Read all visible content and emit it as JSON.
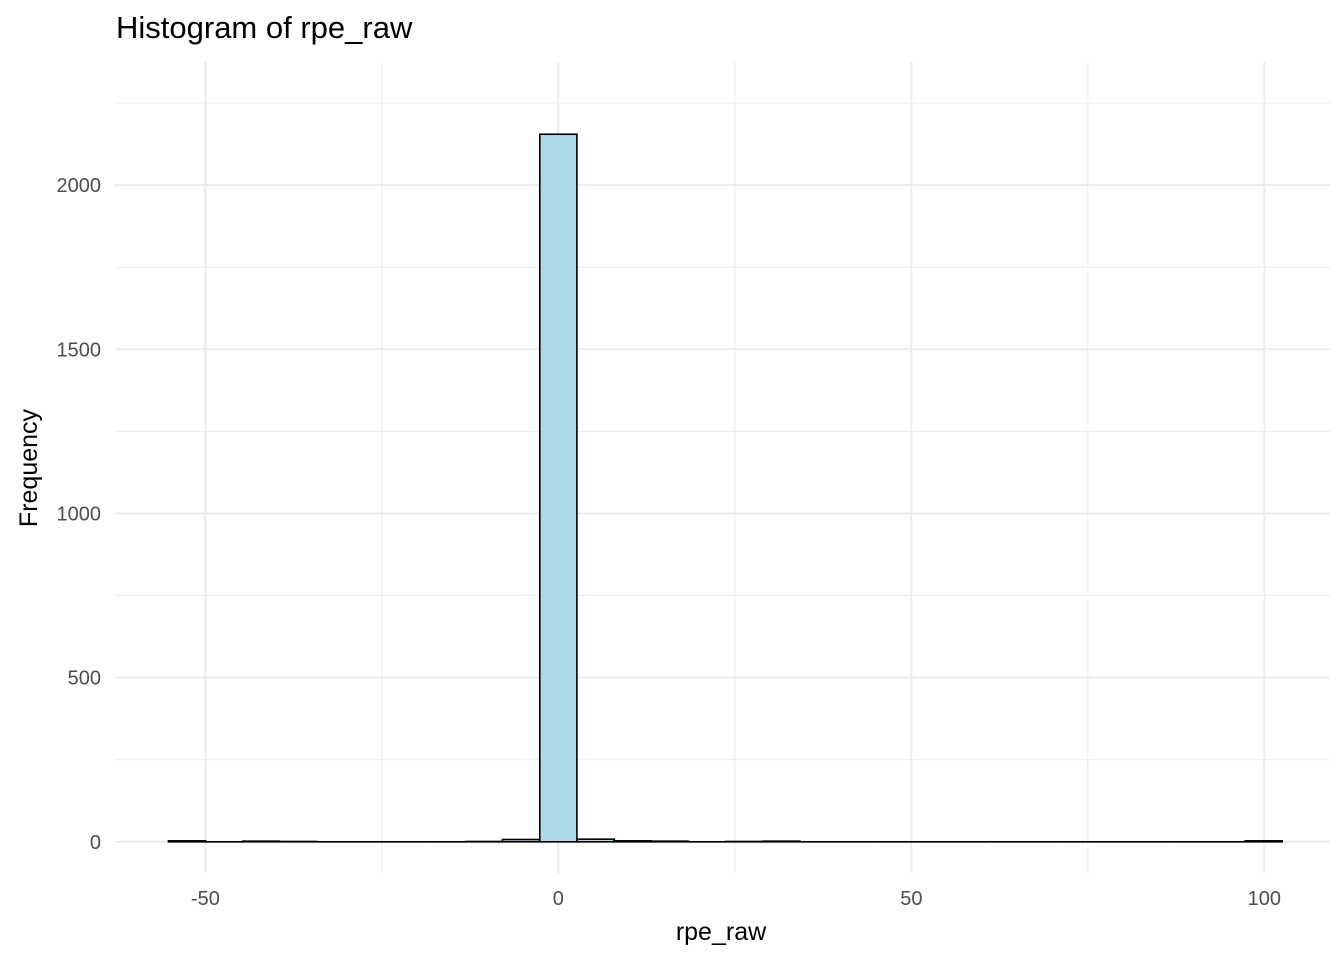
{
  "chart_data": {
    "type": "bar",
    "title": "Histogram of rpe_raw",
    "xlabel": "rpe_raw",
    "ylabel": "Frequency",
    "xlim": [
      -62.8,
      109.3
    ],
    "ylim": [
      -95,
      2375
    ],
    "x_ticks": [
      -50,
      0,
      50,
      100
    ],
    "x_tick_labels": [
      "-50",
      "0",
      "50",
      "100"
    ],
    "y_ticks": [
      0,
      500,
      1000,
      1500,
      2000
    ],
    "y_tick_labels": [
      "0",
      "500",
      "1000",
      "1500",
      "2000"
    ],
    "grid": true,
    "bin_width": 5.26,
    "bins": [
      {
        "center": -52.6,
        "count": 3
      },
      {
        "center": -47.3,
        "count": 0
      },
      {
        "center": -42.1,
        "count": 2
      },
      {
        "center": -36.8,
        "count": 1
      },
      {
        "center": -31.6,
        "count": 0
      },
      {
        "center": -26.3,
        "count": 0
      },
      {
        "center": -21.0,
        "count": 0
      },
      {
        "center": -15.8,
        "count": 0
      },
      {
        "center": -10.5,
        "count": 1
      },
      {
        "center": -5.3,
        "count": 7
      },
      {
        "center": 0.0,
        "count": 2155
      },
      {
        "center": 5.3,
        "count": 8
      },
      {
        "center": 10.5,
        "count": 3
      },
      {
        "center": 15.8,
        "count": 2
      },
      {
        "center": 21.0,
        "count": 0
      },
      {
        "center": 26.3,
        "count": 1
      },
      {
        "center": 31.6,
        "count": 2
      },
      {
        "center": 36.8,
        "count": 0
      },
      {
        "center": 42.1,
        "count": 0
      },
      {
        "center": 47.3,
        "count": 0
      },
      {
        "center": 52.6,
        "count": 0
      },
      {
        "center": 57.9,
        "count": 0
      },
      {
        "center": 63.1,
        "count": 0
      },
      {
        "center": 68.4,
        "count": 0
      },
      {
        "center": 73.6,
        "count": 0
      },
      {
        "center": 78.9,
        "count": 0
      },
      {
        "center": 84.2,
        "count": 0
      },
      {
        "center": 89.4,
        "count": 0
      },
      {
        "center": 94.7,
        "count": 0
      },
      {
        "center": 99.9,
        "count": 3
      }
    ],
    "fill_color": "#add8e6",
    "edge_color": "#000000",
    "grid_color": "#ebebeb"
  }
}
